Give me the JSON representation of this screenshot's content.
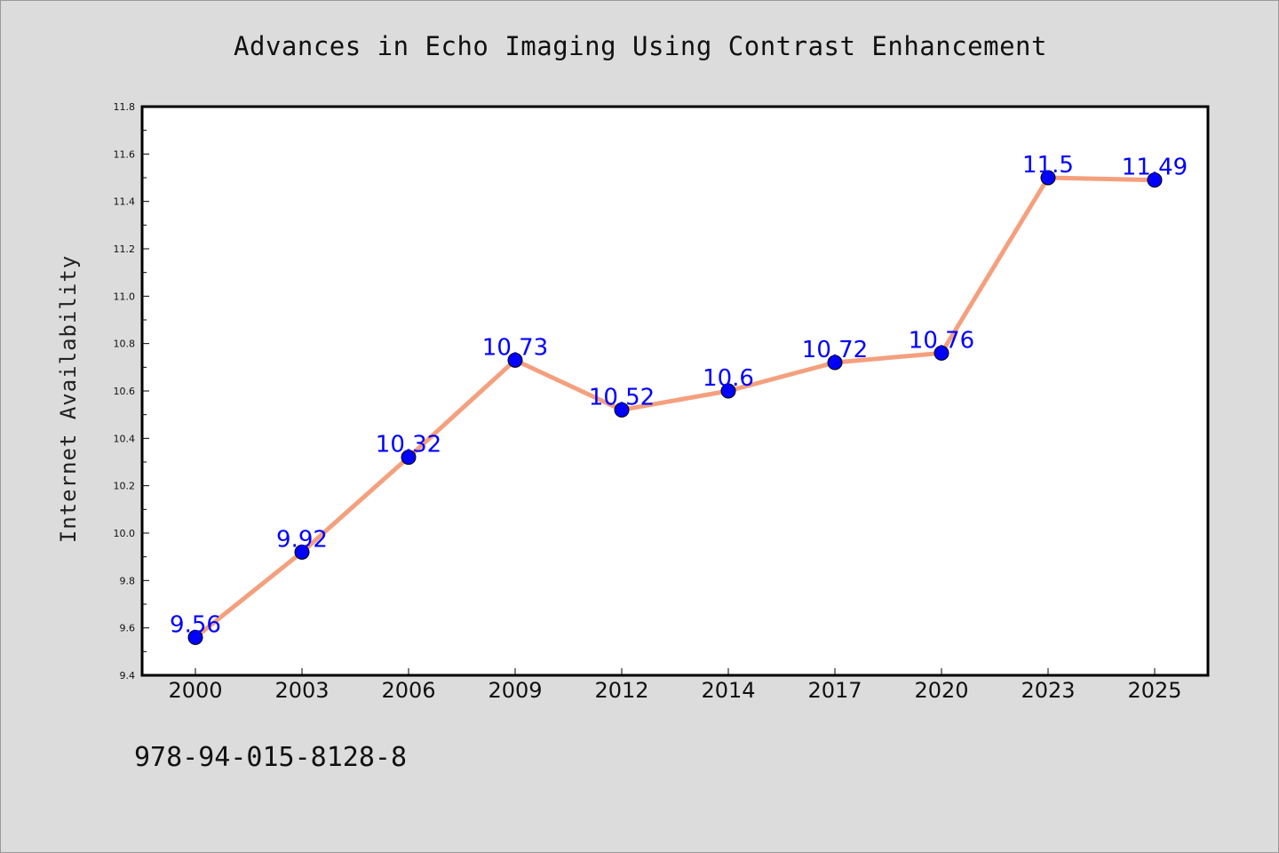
{
  "chart_data": {
    "type": "line",
    "title": "Advances in Echo Imaging Using Contrast Enhancement",
    "xlabel": "",
    "ylabel": "Internet Availability",
    "categories": [
      "2000",
      "2003",
      "2006",
      "2009",
      "2012",
      "2014",
      "2017",
      "2020",
      "2023",
      "2025"
    ],
    "values": [
      9.56,
      9.92,
      10.32,
      10.73,
      10.52,
      10.6,
      10.72,
      10.76,
      11.5,
      11.49
    ],
    "data_labels": [
      "9.56",
      "9.92",
      "10.32",
      "10.73",
      "10.52",
      "10.6",
      "10.72",
      "10.76",
      "11.5",
      "11.49"
    ],
    "ylim": [
      9.4,
      11.8
    ],
    "yticks": [
      "9.4",
      "9.6",
      "9.8",
      "10.0",
      "10.2",
      "10.4",
      "10.6",
      "10.8",
      "11.0",
      "11.2",
      "11.4",
      "11.6",
      "11.8"
    ],
    "grid": false,
    "legend": "none",
    "colors": {
      "line": "#f4a07e",
      "marker": "#0000ff",
      "label": "#0000ff",
      "background": "#dcdcdc",
      "plot_background": "#ffffff"
    }
  },
  "footnote": "978-94-015-8128-8"
}
